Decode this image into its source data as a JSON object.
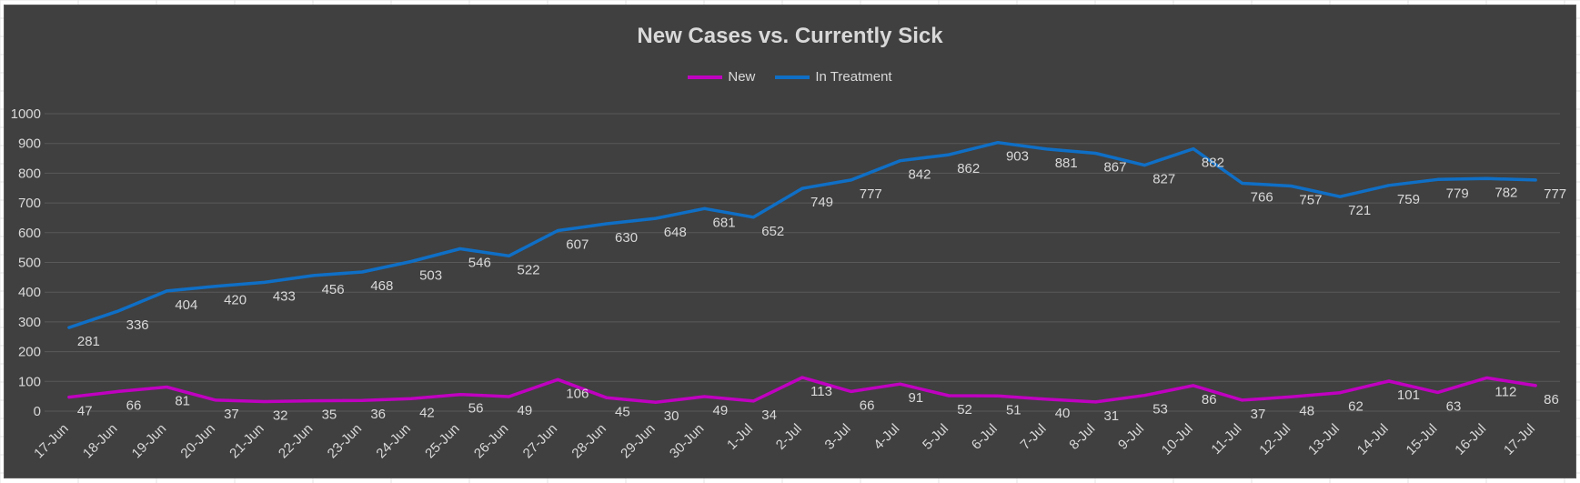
{
  "colors": {
    "background": "#404040",
    "gridline": "#595959",
    "text": "#d9d9d9",
    "series_new": "#c000c0",
    "series_treatment": "#0f6fc6"
  },
  "chart_data": {
    "type": "line",
    "title": "New Cases vs. Currently Sick",
    "xlabel": "",
    "ylabel": "",
    "ylim": [
      0,
      1000
    ],
    "yticks": [
      0,
      100,
      200,
      300,
      400,
      500,
      600,
      700,
      800,
      900,
      1000
    ],
    "grid": true,
    "legend_position": "top-center",
    "categories": [
      "17-Jun",
      "18-Jun",
      "19-Jun",
      "20-Jun",
      "21-Jun",
      "22-Jun",
      "23-Jun",
      "24-Jun",
      "25-Jun",
      "26-Jun",
      "27-Jun",
      "28-Jun",
      "29-Jun",
      "30-Jun",
      "1-Jul",
      "2-Jul",
      "3-Jul",
      "4-Jul",
      "5-Jul",
      "6-Jul",
      "7-Jul",
      "8-Jul",
      "9-Jul",
      "10-Jul",
      "11-Jul",
      "12-Jul",
      "13-Jul",
      "14-Jul",
      "15-Jul",
      "16-Jul",
      "17-Jul"
    ],
    "series": [
      {
        "name": "New",
        "color": "#c000c0",
        "values": [
          47,
          66,
          81,
          37,
          32,
          35,
          36,
          42,
          56,
          49,
          106,
          45,
          30,
          49,
          34,
          113,
          66,
          91,
          52,
          51,
          40,
          31,
          53,
          86,
          37,
          48,
          62,
          101,
          63,
          112,
          86
        ]
      },
      {
        "name": "In Treatment",
        "color": "#0f6fc6",
        "values": [
          281,
          336,
          404,
          420,
          433,
          456,
          468,
          503,
          546,
          522,
          607,
          630,
          648,
          681,
          652,
          749,
          777,
          842,
          862,
          903,
          881,
          867,
          827,
          882,
          766,
          757,
          721,
          759,
          779,
          782,
          777
        ]
      }
    ]
  }
}
